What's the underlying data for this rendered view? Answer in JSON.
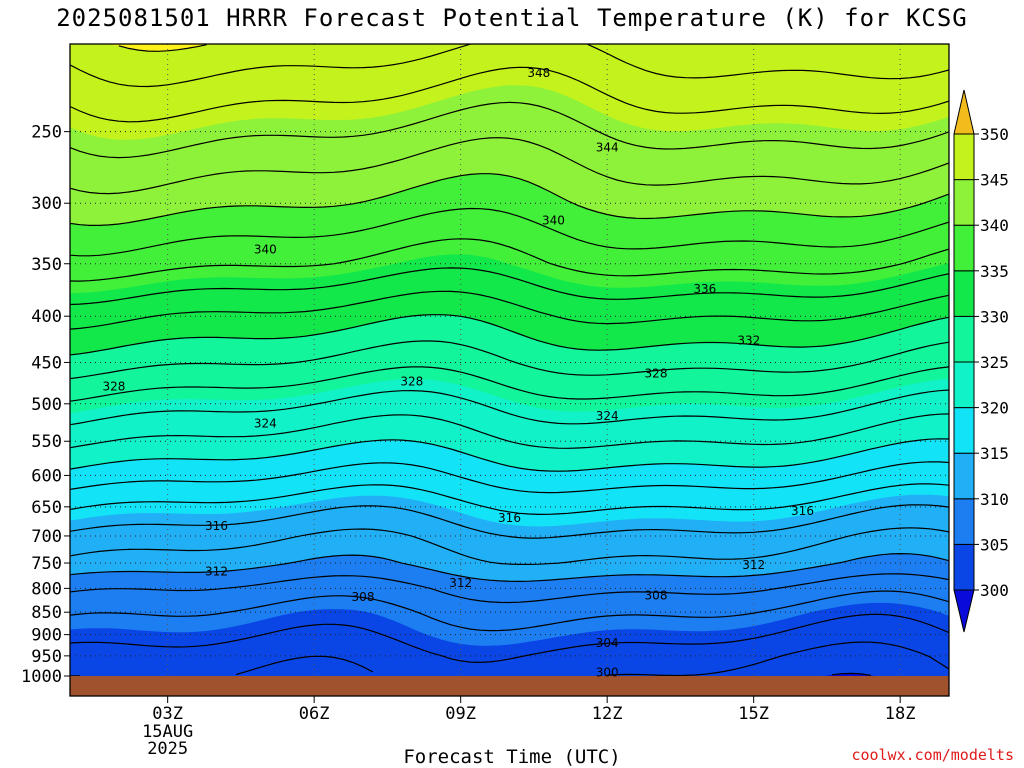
{
  "title": "2025081501 HRRR Forecast Potential Temperature (K) for KCSG",
  "credit": "coolwx.com/modelts",
  "chart_data": {
    "type": "heatmap",
    "title": "2025081501 HRRR Forecast Potential Temperature (K) for KCSG",
    "xlabel": "Forecast Time (UTC)",
    "ylabel": "",
    "x_unit": "hours since 2025-08-15 00Z",
    "xlim": [
      1,
      19
    ],
    "x_ticks": [
      {
        "value": 3,
        "label": "03Z",
        "sub": [
          "15AUG",
          "2025"
        ]
      },
      {
        "value": 6,
        "label": "06Z",
        "sub": []
      },
      {
        "value": 9,
        "label": "09Z",
        "sub": []
      },
      {
        "value": 12,
        "label": "12Z",
        "sub": []
      },
      {
        "value": 15,
        "label": "15Z",
        "sub": []
      },
      {
        "value": 18,
        "label": "18Z",
        "sub": []
      }
    ],
    "y_axis": "pressure (hPa), log scale, inverted",
    "ylim": [
      1000,
      200
    ],
    "y_ticks": [
      250,
      300,
      350,
      400,
      450,
      500,
      550,
      600,
      650,
      700,
      750,
      800,
      850,
      900,
      950,
      1000
    ],
    "grid": true,
    "colorbar": {
      "levels": [
        300,
        305,
        310,
        315,
        320,
        325,
        330,
        335,
        340,
        345,
        350
      ],
      "colors": [
        "#0a0adb",
        "#0a46e6",
        "#1c7ef0",
        "#21b0f5",
        "#12e3f7",
        "#12f2c8",
        "#12f59a",
        "#12e84a",
        "#42f03a",
        "#8ff23a",
        "#c4f21c",
        "#fff21a",
        "#f2bd1c"
      ],
      "extend": "both"
    },
    "field_profile": [
      {
        "p": 1000,
        "theta": 302
      },
      {
        "p": 950,
        "theta": 303
      },
      {
        "p": 900,
        "theta": 304.5
      },
      {
        "p": 850,
        "theta": 306
      },
      {
        "p": 800,
        "theta": 308
      },
      {
        "p": 750,
        "theta": 311
      },
      {
        "p": 700,
        "theta": 313
      },
      {
        "p": 650,
        "theta": 315.5
      },
      {
        "p": 600,
        "theta": 318.5
      },
      {
        "p": 550,
        "theta": 321.5
      },
      {
        "p": 500,
        "theta": 324.5
      },
      {
        "p": 450,
        "theta": 328
      },
      {
        "p": 400,
        "theta": 331.5
      },
      {
        "p": 350,
        "theta": 336
      },
      {
        "p": 300,
        "theta": 340
      },
      {
        "p": 250,
        "theta": 344
      },
      {
        "p": 200,
        "theta": 349
      }
    ],
    "contour_labels": [
      {
        "value": "348",
        "x": 10.6,
        "p": 215
      },
      {
        "value": "344",
        "x": 12.0,
        "p": 260
      },
      {
        "value": "340",
        "x": 10.9,
        "p": 313
      },
      {
        "value": "340",
        "x": 5.0,
        "p": 337
      },
      {
        "value": "336",
        "x": 14.0,
        "p": 373
      },
      {
        "value": "332",
        "x": 14.9,
        "p": 425
      },
      {
        "value": "328",
        "x": 1.9,
        "p": 478
      },
      {
        "value": "328",
        "x": 8.0,
        "p": 472
      },
      {
        "value": "328",
        "x": 13.0,
        "p": 462
      },
      {
        "value": "324",
        "x": 5.0,
        "p": 525
      },
      {
        "value": "324",
        "x": 12.0,
        "p": 515
      },
      {
        "value": "316",
        "x": 4.0,
        "p": 682
      },
      {
        "value": "316",
        "x": 10.0,
        "p": 668
      },
      {
        "value": "316",
        "x": 16.0,
        "p": 656
      },
      {
        "value": "312",
        "x": 4.0,
        "p": 765
      },
      {
        "value": "312",
        "x": 9.0,
        "p": 788
      },
      {
        "value": "312",
        "x": 15.0,
        "p": 753
      },
      {
        "value": "308",
        "x": 7.0,
        "p": 817
      },
      {
        "value": "308",
        "x": 13.0,
        "p": 814
      },
      {
        "value": "304",
        "x": 12.0,
        "p": 918
      },
      {
        "value": "300",
        "x": 12.0,
        "p": 990
      }
    ]
  }
}
